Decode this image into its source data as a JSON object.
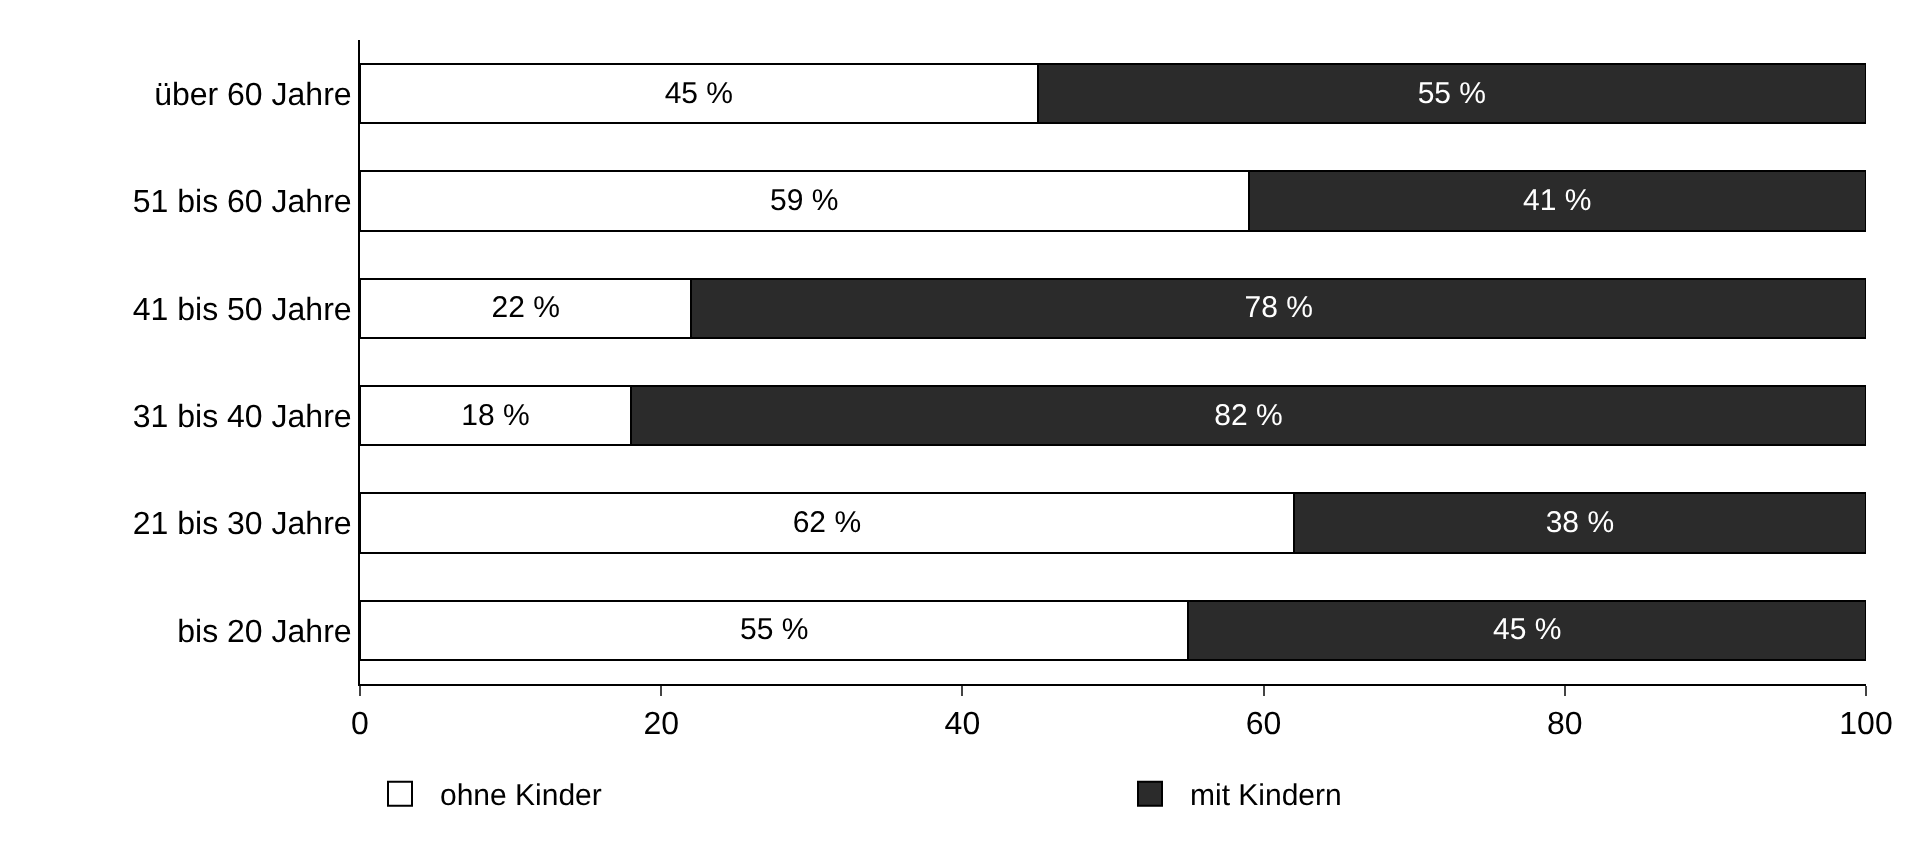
{
  "chart_data": {
    "type": "bar",
    "orientation": "horizontal",
    "stacked": true,
    "categories": [
      "über 60 Jahre",
      "51 bis 60 Jahre",
      "41 bis 50 Jahre",
      "31 bis 40 Jahre",
      "21 bis 30 Jahre",
      "bis 20 Jahre"
    ],
    "series": [
      {
        "name": "ohne Kinder",
        "color": "#ffffff",
        "values": [
          45,
          59,
          22,
          18,
          62,
          55
        ],
        "value_labels": [
          "45 %",
          "59 %",
          "22 %",
          "18 %",
          "62 %",
          "55 %"
        ]
      },
      {
        "name": "mit Kindern",
        "color": "#2b2b2b",
        "values": [
          55,
          41,
          78,
          82,
          38,
          45
        ],
        "value_labels": [
          "55 %",
          "41 %",
          "78 %",
          "82 %",
          "38 %",
          "45 %"
        ]
      }
    ],
    "xlim": [
      0,
      100
    ],
    "xticks": [
      0,
      20,
      40,
      60,
      80,
      100
    ],
    "legend": "bottom"
  }
}
